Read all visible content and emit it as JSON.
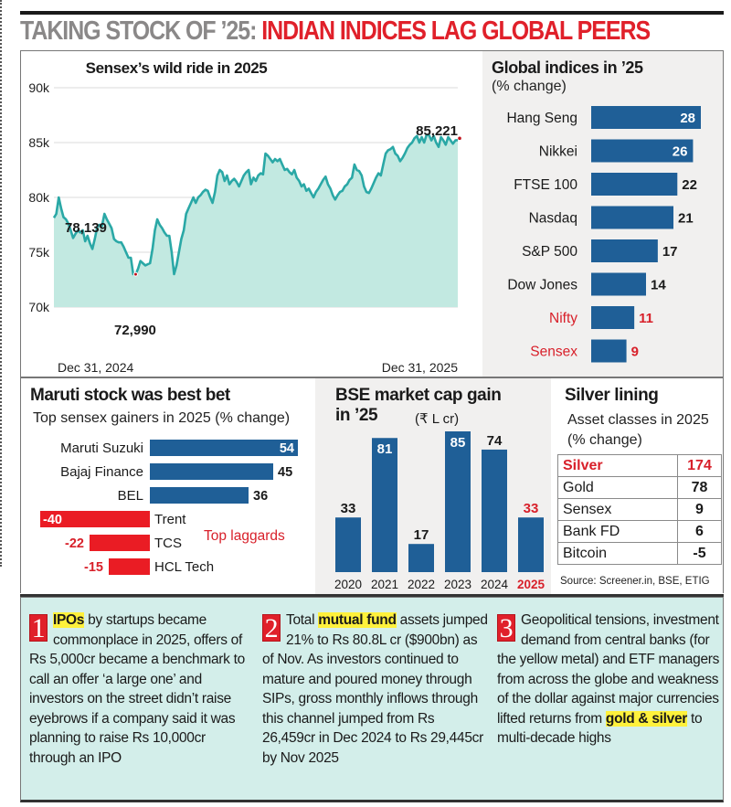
{
  "headline": {
    "part1": "TAKING STOCK OF ’25: ",
    "part2": "INDIAN INDICES LAG GLOBAL PEERS"
  },
  "colors": {
    "accent_red": "#e0202a",
    "bar_blue": "#1f5f97",
    "line_teal": "#2aa8a6",
    "area_fill": "#c2e9e1",
    "notes_bg": "#d3eeea",
    "highlight_yellow": "#fff13c"
  },
  "chart_data": [
    {
      "id": "sensex",
      "type": "area",
      "title": "Sensex’s wild ride in 2025",
      "xlabel": "",
      "ylabel": "",
      "ylim": [
        70000,
        90000
      ],
      "yticks": [
        70000,
        75000,
        80000,
        85000,
        90000
      ],
      "ytick_labels": [
        "70k",
        "75k",
        "80k",
        "85k",
        "90k"
      ],
      "x_labels": [
        "Dec 31, 2024",
        "Dec 31, 2025"
      ],
      "grid": true,
      "annotations": [
        {
          "label": "78,139",
          "value": 78139,
          "position": "start"
        },
        {
          "label": "72,990",
          "value": 72990,
          "position": "low"
        },
        {
          "label": "85,221",
          "value": 85221,
          "position": "end"
        }
      ],
      "series": [
        {
          "name": "Sensex",
          "values": [
            78139,
            78500,
            80000,
            79000,
            78200,
            78000,
            77600,
            77000,
            76300,
            76700,
            77000,
            76800,
            77000,
            76000,
            76500,
            75800,
            75300,
            76200,
            77300,
            77500,
            77400,
            78500,
            78000,
            77600,
            77200,
            76200,
            76000,
            75900,
            75900,
            75500,
            75000,
            74500,
            74500,
            73000,
            72990,
            73500,
            74200,
            74000,
            73800,
            73900,
            74000,
            75300,
            77000,
            78000,
            77500,
            77200,
            76800,
            76500,
            76500,
            75000,
            73000,
            73800,
            75000,
            76200,
            77000,
            78500,
            79000,
            79500,
            80000,
            79500,
            80000,
            80200,
            80500,
            80700,
            80600,
            80000,
            79500,
            80500,
            82000,
            82500,
            82300,
            81500,
            82000,
            81200,
            81500,
            81700,
            81400,
            81000,
            81500,
            82000,
            82300,
            82500,
            81200,
            81800,
            81500,
            82000,
            82200,
            82100,
            84000,
            83800,
            83500,
            83200,
            83500,
            83300,
            83500,
            83000,
            82500,
            82600,
            82300,
            82100,
            82500,
            81800,
            81500,
            81000,
            81200,
            80600,
            80800,
            80400,
            80000,
            80500,
            80800,
            81200,
            81600,
            81900,
            81200,
            80800,
            80200,
            79800,
            80200,
            80500,
            80600,
            81000,
            81200,
            81600,
            81800,
            83000,
            82500,
            82400,
            82000,
            81000,
            80500,
            80400,
            80800,
            81300,
            81800,
            82200,
            82000,
            83000,
            84000,
            84300,
            84400,
            84600,
            84000,
            83800,
            83300,
            83600,
            84000,
            84500,
            84800,
            85000,
            85400,
            85600,
            85000,
            85500,
            85000,
            85700,
            85700,
            85200,
            85600,
            85000,
            84600,
            85500,
            85200,
            84800,
            85500,
            85200,
            84900,
            85200,
            85221
          ]
        }
      ]
    },
    {
      "id": "global",
      "type": "bar",
      "orientation": "horizontal",
      "title": "Global indices in ’25",
      "subtitle": "(% change)",
      "categories": [
        "Hang Seng",
        "Nikkei",
        "FTSE 100",
        "Nasdaq",
        "S&P 500",
        "Dow Jones",
        "Nifty",
        "Sensex"
      ],
      "values": [
        28,
        26,
        22,
        21,
        17,
        14,
        11,
        9
      ],
      "highlighted": [
        "Nifty",
        "Sensex"
      ],
      "xlim": [
        0,
        28
      ]
    },
    {
      "id": "maruti",
      "type": "bar",
      "orientation": "horizontal",
      "title": "Maruti stock was best bet",
      "subtitle": "Top sensex gainers in 2025 (% change)",
      "categories": [
        "Maruti Suzuki",
        "Bajaj Finance",
        "BEL",
        "Trent",
        "TCS",
        "HCL Tech"
      ],
      "values": [
        54,
        45,
        36,
        -40,
        -22,
        -15
      ],
      "annotations": [
        {
          "label": "Top laggards"
        }
      ],
      "xlim": [
        -40,
        54
      ]
    },
    {
      "id": "bse",
      "type": "bar",
      "orientation": "vertical",
      "title": "BSE market cap gain in ’25",
      "unit": "(₹ L cr)",
      "categories": [
        "2020",
        "2021",
        "2022",
        "2023",
        "2024",
        "2025"
      ],
      "values": [
        33,
        81,
        17,
        85,
        74,
        33
      ],
      "highlighted": [
        "2025"
      ],
      "ylim": [
        0,
        85
      ]
    },
    {
      "id": "silver",
      "type": "table",
      "title": "Silver lining",
      "subtitle": "Asset classes in 2025 (% change)",
      "rows": [
        {
          "label": "Silver",
          "value": "174",
          "highlight": true
        },
        {
          "label": "Gold",
          "value": "78"
        },
        {
          "label": "Sensex",
          "value": "9"
        },
        {
          "label": "Bank FD",
          "value": "6"
        },
        {
          "label": "Bitcoin",
          "value": "-5"
        }
      ],
      "source": "Source: Screener.in, BSE, ETIG"
    }
  ],
  "notes": [
    {
      "number": "1",
      "highlight": "IPOs",
      "before": "",
      "after": " by startups became commonplace in 2025, offers of Rs 5,000cr became a benchmark to call an offer ‘a large one’ and investors on the street didn’t raise eyebrows if a company said it was planning to raise Rs 10,000cr through an IPO",
      "tail": ""
    },
    {
      "number": "2",
      "before": "Total ",
      "highlight": "mutual fund",
      "after": " assets jumped 21% to Rs 80.8L cr ($900bn) as of Nov. As investors continued to mature and poured money through SIPs, gross monthly inflows through this channel jumped from Rs 26,459cr in Dec 2024 to Rs 29,445cr by Nov 2025",
      "tail": ""
    },
    {
      "number": "3",
      "before": "Geopolitical tensions, investment demand from central banks (for the yellow metal) and ETF managers from across the globe and weakness of the dollar against major currencies lifted returns from ",
      "highlight": "gold & silver",
      "after": " to multi-decade highs",
      "tail": ""
    }
  ]
}
